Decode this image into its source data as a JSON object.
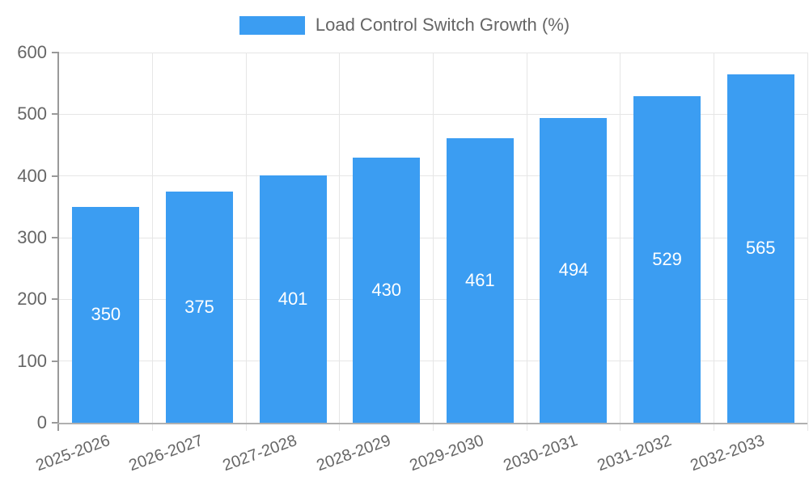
{
  "legend": {
    "label": "Load Control Switch Growth (%)"
  },
  "colors": {
    "bar": "#3b9df2",
    "bar_value_text": "#ffffff",
    "axis_line": "#999999",
    "grid_line": "#e6e6e6",
    "tick_label_text": "#666666",
    "legend_text": "#666666",
    "background": "#ffffff"
  },
  "chart_data": {
    "type": "bar",
    "title": "Load Control Switch Growth (%)",
    "categories": [
      "2025-2026",
      "2026-2027",
      "2027-2028",
      "2028-2029",
      "2029-2030",
      "2030-2031",
      "2031-2032",
      "2032-2033"
    ],
    "values": [
      350,
      375,
      401,
      430,
      461,
      494,
      529,
      565
    ],
    "xlabel": "",
    "ylabel": "",
    "ylim": [
      0,
      600
    ],
    "yticks": [
      0,
      100,
      200,
      300,
      400,
      500,
      600
    ],
    "legend_position": "top-center",
    "grid": true,
    "value_labels": "inside-center-white",
    "x_tick_rotation_deg": -20
  }
}
